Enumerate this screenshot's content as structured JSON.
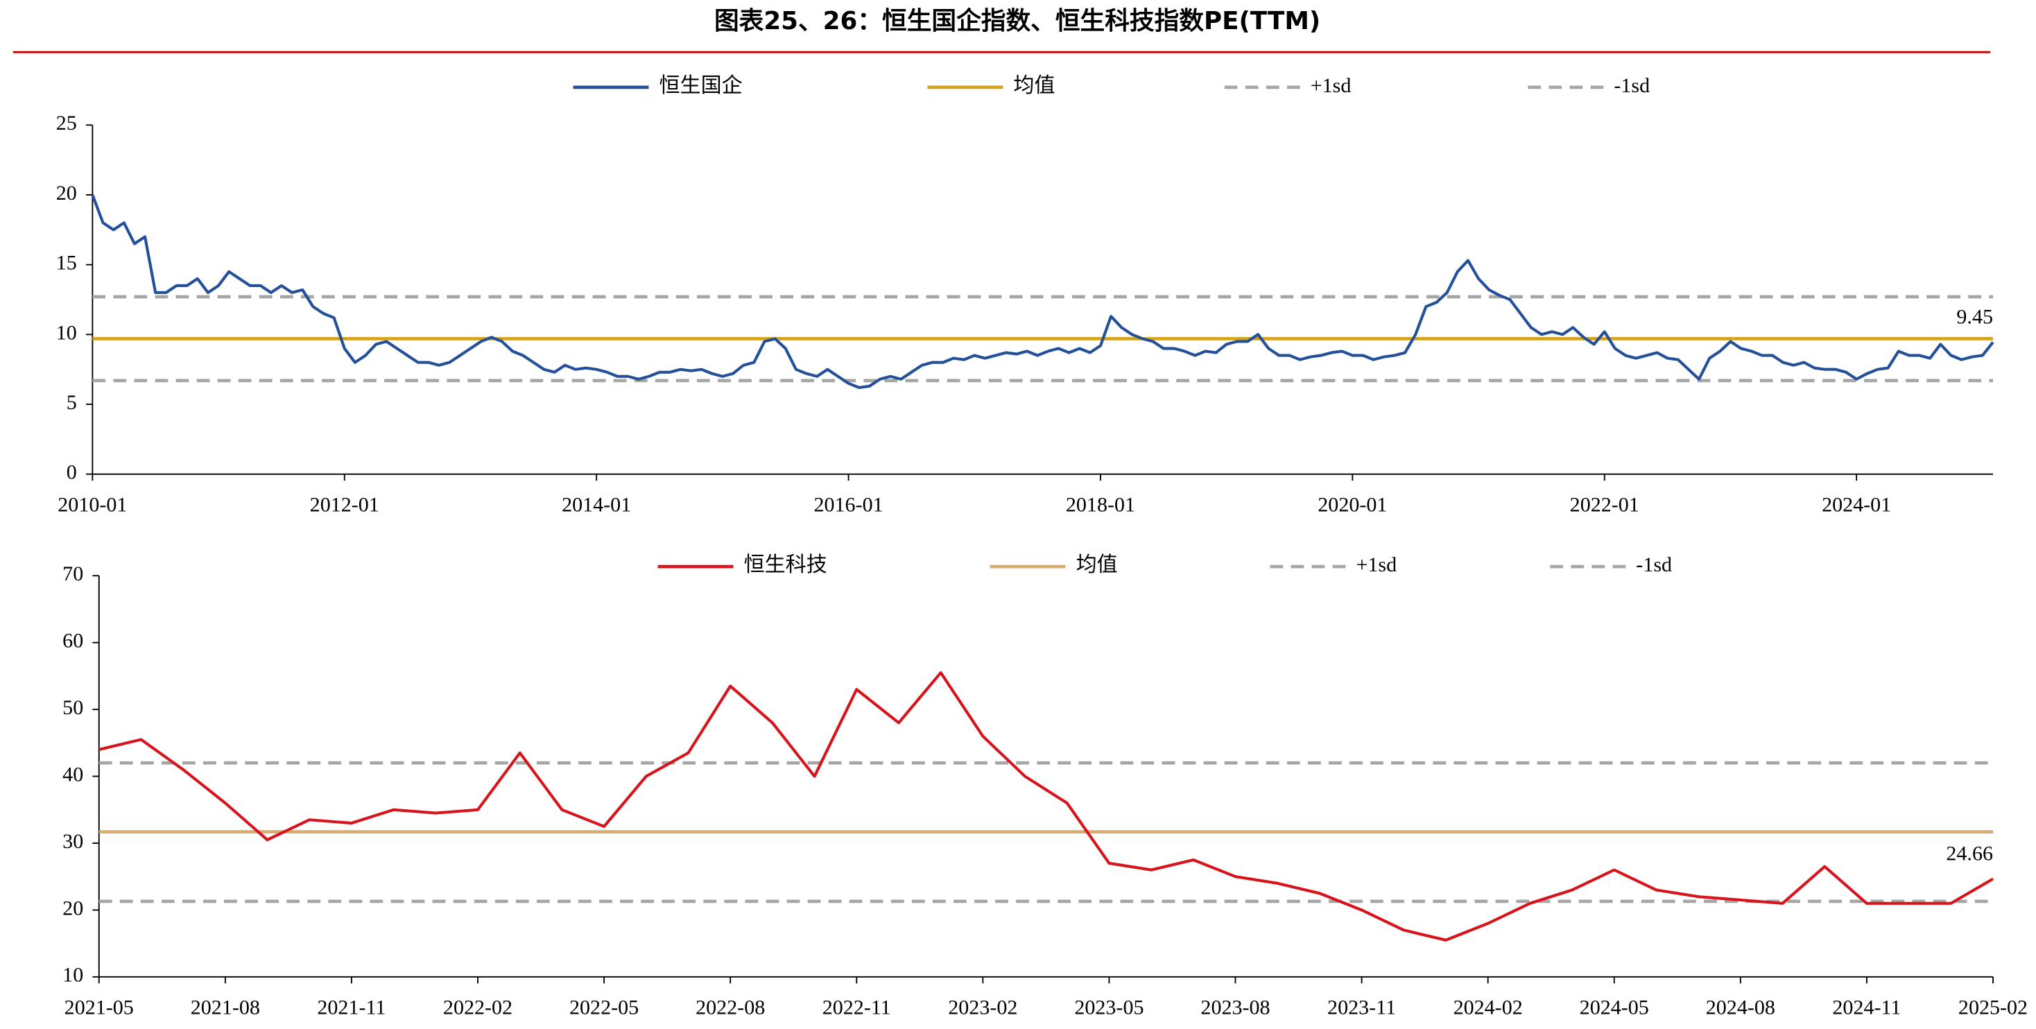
{
  "title": "图表25、26：恒生国企指数、恒生科技指数PE(TTM)",
  "chart_data": [
    {
      "type": "line",
      "x": [
        "2010-01",
        "2010-02",
        "2010-03",
        "2010-04",
        "2010-05",
        "2010-06",
        "2010-07",
        "2010-08",
        "2010-09",
        "2010-10",
        "2010-11",
        "2010-12",
        "2011-01",
        "2011-02",
        "2011-03",
        "2011-04",
        "2011-05",
        "2011-06",
        "2011-07",
        "2011-08",
        "2011-09",
        "2011-10",
        "2011-11",
        "2011-12",
        "2012-01",
        "2012-02",
        "2012-03",
        "2012-04",
        "2012-05",
        "2012-06",
        "2012-07",
        "2012-08",
        "2012-09",
        "2012-10",
        "2012-11",
        "2012-12",
        "2013-01",
        "2013-02",
        "2013-03",
        "2013-04",
        "2013-05",
        "2013-06",
        "2013-07",
        "2013-08",
        "2013-09",
        "2013-10",
        "2013-11",
        "2013-12",
        "2014-01",
        "2014-02",
        "2014-03",
        "2014-04",
        "2014-05",
        "2014-06",
        "2014-07",
        "2014-08",
        "2014-09",
        "2014-10",
        "2014-11",
        "2014-12",
        "2015-01",
        "2015-02",
        "2015-03",
        "2015-04",
        "2015-05",
        "2015-06",
        "2015-07",
        "2015-08",
        "2015-09",
        "2015-10",
        "2015-11",
        "2015-12",
        "2016-01",
        "2016-02",
        "2016-03",
        "2016-04",
        "2016-05",
        "2016-06",
        "2016-07",
        "2016-08",
        "2016-09",
        "2016-10",
        "2016-11",
        "2016-12",
        "2017-01",
        "2017-02",
        "2017-03",
        "2017-04",
        "2017-05",
        "2017-06",
        "2017-07",
        "2017-08",
        "2017-09",
        "2017-10",
        "2017-11",
        "2017-12",
        "2018-01",
        "2018-02",
        "2018-03",
        "2018-04",
        "2018-05",
        "2018-06",
        "2018-07",
        "2018-08",
        "2018-09",
        "2018-10",
        "2018-11",
        "2018-12",
        "2019-01",
        "2019-02",
        "2019-03",
        "2019-04",
        "2019-05",
        "2019-06",
        "2019-07",
        "2019-08",
        "2019-09",
        "2019-10",
        "2019-11",
        "2019-12",
        "2020-01",
        "2020-02",
        "2020-03",
        "2020-04",
        "2020-05",
        "2020-06",
        "2020-07",
        "2020-08",
        "2020-09",
        "2020-10",
        "2020-11",
        "2020-12",
        "2021-01",
        "2021-02",
        "2021-03",
        "2021-04",
        "2021-05",
        "2021-06",
        "2021-07",
        "2021-08",
        "2021-09",
        "2021-10",
        "2021-11",
        "2021-12",
        "2022-01",
        "2022-02",
        "2022-03",
        "2022-04",
        "2022-05",
        "2022-06",
        "2022-07",
        "2022-08",
        "2022-09",
        "2022-10",
        "2022-11",
        "2022-12",
        "2023-01",
        "2023-02",
        "2023-03",
        "2023-04",
        "2023-05",
        "2023-06",
        "2023-07",
        "2023-08",
        "2023-09",
        "2023-10",
        "2023-11",
        "2023-12",
        "2024-01",
        "2024-02",
        "2024-03",
        "2024-04",
        "2024-05",
        "2024-06",
        "2024-07",
        "2024-08",
        "2024-09",
        "2024-10",
        "2024-11",
        "2024-12",
        "2025-01",
        "2025-02"
      ],
      "series": [
        {
          "name": "恒生国企",
          "color": "#24509a",
          "values": [
            20,
            18,
            17.5,
            18,
            16.5,
            17,
            13,
            13,
            13.5,
            13.5,
            14,
            13,
            13.5,
            14.5,
            14,
            13.5,
            13.5,
            13,
            13.5,
            13,
            13.2,
            12,
            11.5,
            11.2,
            9,
            8,
            8.5,
            9.3,
            9.5,
            9,
            8.5,
            8,
            8,
            7.8,
            8,
            8.5,
            9,
            9.5,
            9.8,
            9.5,
            8.8,
            8.5,
            8,
            7.5,
            7.3,
            7.8,
            7.5,
            7.6,
            7.5,
            7.3,
            7,
            7,
            6.8,
            7,
            7.3,
            7.3,
            7.5,
            7.4,
            7.5,
            7.2,
            7,
            7.2,
            7.8,
            8,
            9.5,
            9.7,
            9,
            7.5,
            7.2,
            7,
            7.5,
            7,
            6.5,
            6.2,
            6.3,
            6.8,
            7,
            6.8,
            7.3,
            7.8,
            8,
            8,
            8.3,
            8.2,
            8.5,
            8.3,
            8.5,
            8.7,
            8.6,
            8.8,
            8.5,
            8.8,
            9,
            8.7,
            9,
            8.7,
            9.2,
            11.3,
            10.5,
            10,
            9.7,
            9.5,
            9,
            9,
            8.8,
            8.5,
            8.8,
            8.7,
            9.3,
            9.5,
            9.5,
            10,
            9,
            8.5,
            8.5,
            8.2,
            8.4,
            8.5,
            8.7,
            8.8,
            8.5,
            8.5,
            8.2,
            8.4,
            8.5,
            8.7,
            10,
            12,
            12.3,
            13,
            14.5,
            15.3,
            14,
            13.2,
            12.8,
            12.5,
            11.5,
            10.5,
            10,
            10.2,
            10,
            10.5,
            9.8,
            9.3,
            10.2,
            9,
            8.5,
            8.3,
            8.5,
            8.7,
            8.3,
            8.2,
            7.5,
            6.8,
            8.3,
            8.8,
            9.5,
            9,
            8.8,
            8.5,
            8.5,
            8,
            7.8,
            8,
            7.6,
            7.5,
            7.5,
            7.3,
            6.8,
            7.2,
            7.5,
            7.6,
            8.8,
            8.5,
            8.5,
            8.3,
            9.3,
            8.5,
            8.2,
            8.4,
            8.5,
            9.45
          ]
        }
      ],
      "reference_lines": [
        {
          "name": "均值",
          "value": 9.7,
          "color": "#d6a21a",
          "dashed": false
        },
        {
          "name": "+1sd",
          "value": 12.7,
          "color": "#a6a6a6",
          "dashed": true
        },
        {
          "name": "-1sd",
          "value": 6.7,
          "color": "#a6a6a6",
          "dashed": true
        }
      ],
      "last_value_label": true,
      "xticks": [
        "2010-01",
        "2012-01",
        "2014-01",
        "2016-01",
        "2018-01",
        "2020-01",
        "2022-01",
        "2024-01"
      ],
      "ylim": [
        0,
        25
      ],
      "yticks": [
        0,
        5,
        10,
        15,
        20,
        25
      ]
    },
    {
      "type": "line",
      "x": [
        "2021-05",
        "2021-06",
        "2021-07",
        "2021-08",
        "2021-09",
        "2021-10",
        "2021-11",
        "2021-12",
        "2022-01",
        "2022-02",
        "2022-03",
        "2022-04",
        "2022-05",
        "2022-06",
        "2022-07",
        "2022-08",
        "2022-09",
        "2022-10",
        "2022-11",
        "2022-12",
        "2023-01",
        "2023-02",
        "2023-03",
        "2023-04",
        "2023-05",
        "2023-06",
        "2023-07",
        "2023-08",
        "2023-09",
        "2023-10",
        "2023-11",
        "2023-12",
        "2024-01",
        "2024-02",
        "2024-03",
        "2024-04",
        "2024-05",
        "2024-06",
        "2024-07",
        "2024-08",
        "2024-09",
        "2024-10",
        "2024-11",
        "2024-12",
        "2025-01",
        "2025-02"
      ],
      "series": [
        {
          "name": "恒生科技",
          "color": "#d7141c",
          "values": [
            44,
            45.5,
            41,
            36,
            30.5,
            33.5,
            33,
            35,
            34.5,
            35,
            43.5,
            35,
            32.5,
            40,
            43.5,
            53.5,
            48,
            40,
            53,
            48,
            55.5,
            46,
            40,
            36,
            27,
            26,
            27.5,
            25,
            24,
            22.5,
            20,
            17,
            15.5,
            18,
            21,
            23,
            26,
            23,
            22,
            21.5,
            21,
            26.5,
            21,
            21,
            21,
            24.66
          ]
        }
      ],
      "reference_lines": [
        {
          "name": "均值",
          "value": 31.7,
          "color": "#d9ac6e",
          "dashed": false
        },
        {
          "name": "+1sd",
          "value": 42,
          "color": "#a6a6a6",
          "dashed": true
        },
        {
          "name": "-1sd",
          "value": 21.3,
          "color": "#a6a6a6",
          "dashed": true
        }
      ],
      "last_value_label": true,
      "xticks": [
        "2021-05",
        "2021-08",
        "2021-11",
        "2022-02",
        "2022-05",
        "2022-08",
        "2022-11",
        "2023-02",
        "2023-05",
        "2023-08",
        "2023-11",
        "2024-02",
        "2024-05",
        "2024-08",
        "2024-11",
        "2025-02"
      ],
      "ylim": [
        10,
        70
      ],
      "yticks": [
        10,
        20,
        30,
        40,
        50,
        60,
        70
      ]
    }
  ]
}
